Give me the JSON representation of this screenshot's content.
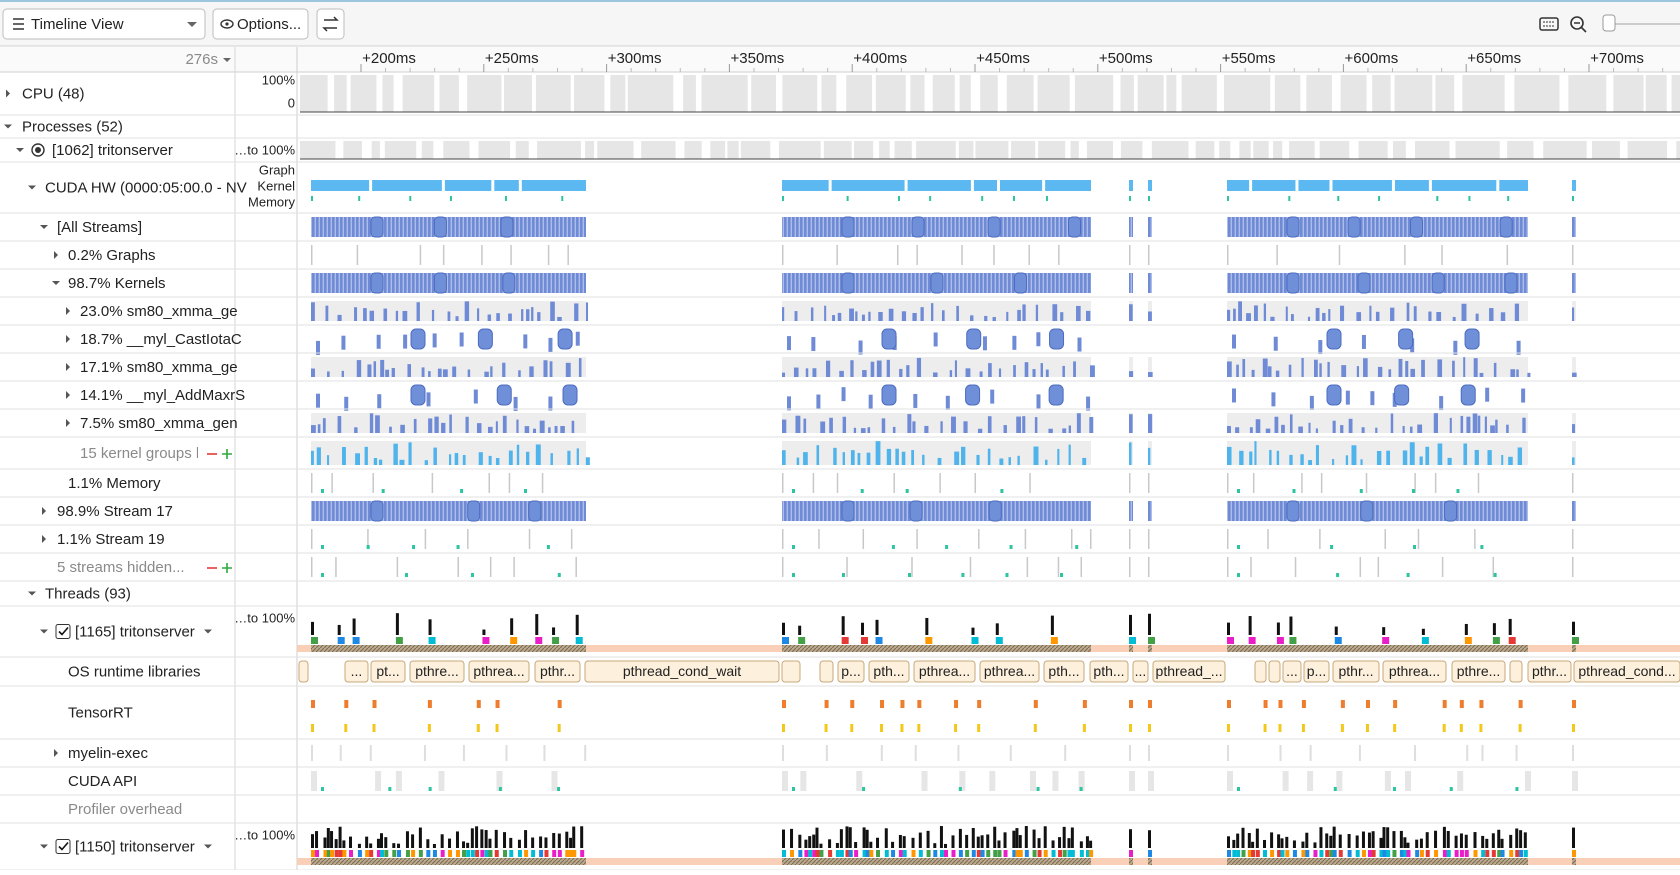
{
  "toolbar": {
    "view": "Timeline View",
    "options": "Options...",
    "time_origin": "276s"
  },
  "ruler": [
    "+200ms",
    "+250ms",
    "+300ms",
    "+350ms",
    "+400ms",
    "+450ms",
    "+500ms",
    "+550ms",
    "+600ms",
    "+650ms",
    "+700ms"
  ],
  "rows": [
    {
      "label": "CPU (48)",
      "side": [
        "100%",
        "0"
      ]
    },
    {
      "label": "Processes (52)"
    },
    {
      "label": "[1062] tritonserver",
      "side": [
        "…to 100%"
      ]
    },
    {
      "label": "CUDA HW (0000:05:00.0 - NV",
      "side": [
        "Graph",
        "Kernel",
        "Memory"
      ]
    },
    {
      "label": "[All Streams]"
    },
    {
      "label": "0.2% Graphs"
    },
    {
      "label": "98.7% Kernels"
    },
    {
      "label": "23.0% sm80_xmma_ge"
    },
    {
      "label": "18.7% __myl_CastIotaC"
    },
    {
      "label": "17.1% sm80_xmma_ge"
    },
    {
      "label": "14.1% __myl_AddMaxrS"
    },
    {
      "label": "7.5% sm80_xmma_gen"
    },
    {
      "label": "15 kernel groups h"
    },
    {
      "label": "1.1% Memory"
    },
    {
      "label": "98.9% Stream 17"
    },
    {
      "label": "1.1% Stream 19"
    },
    {
      "label": "5 streams hidden..."
    },
    {
      "label": "Threads (93)"
    },
    {
      "label": "[1165] tritonserver",
      "side": [
        "…to 100%"
      ]
    },
    {
      "label": "OS runtime libraries"
    },
    {
      "label": "TensorRT"
    },
    {
      "label": "myelin-exec"
    },
    {
      "label": "CUDA API"
    },
    {
      "label": "Profiler overhead"
    },
    {
      "label": "[1150] tritonserver",
      "side": [
        "…to 100%"
      ]
    }
  ],
  "os_blocks": [
    "...",
    "pt...",
    "pthre...",
    "pthrea...",
    "pthr...",
    "pthread_cond_wait",
    "p...",
    "pth...",
    "pthrea...",
    "pthrea...",
    "pth...",
    "pth...",
    "...",
    "pthread_...",
    "...",
    "p...",
    "pthr...",
    "pthrea...",
    "pthre...",
    "pthr...",
    "pthread_cond..."
  ]
}
